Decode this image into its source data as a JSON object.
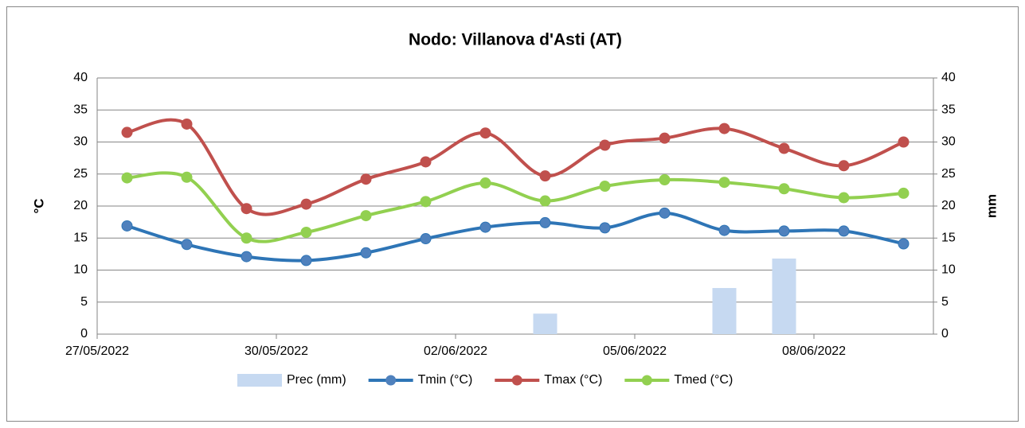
{
  "chart_data": {
    "type": "line",
    "title": "Nodo: Villanova d'Asti (AT)",
    "y_label": "°C",
    "y2_label": "mm",
    "categories": [
      "27/05/2022",
      null,
      null,
      "30/05/2022",
      null,
      null,
      "02/06/2022",
      null,
      null,
      "05/06/2022",
      null,
      null,
      "08/06/2022",
      null
    ],
    "series": [
      {
        "name": "Prec (mm)",
        "type": "bar",
        "axis": "y2",
        "color": "#c6d9f1",
        "values": [
          0,
          0,
          0,
          0,
          0,
          0,
          0,
          3.2,
          0,
          0,
          7.2,
          11.8,
          0,
          0
        ]
      },
      {
        "name": "Tmin (°C)",
        "type": "line",
        "color": "#2e75b6",
        "marker_color": "#4f81bd",
        "values": [
          16.9,
          14,
          12.1,
          11.5,
          12.7,
          14.9,
          16.7,
          17.4,
          16.6,
          18.9,
          16.2,
          16.1,
          16.1,
          14.1
        ]
      },
      {
        "name": "Tmax (°C)",
        "type": "line",
        "color": "#c0504d",
        "marker_color": "#c0504d",
        "values": [
          31.5,
          32.8,
          19.6,
          20.3,
          24.2,
          26.9,
          31.4,
          24.7,
          29.5,
          30.6,
          32.1,
          29,
          26.3,
          30
        ]
      },
      {
        "name": "Tmed (°C)",
        "type": "line",
        "color": "#92d050",
        "marker_color": "#92d050",
        "values": [
          24.4,
          24.5,
          15,
          15.9,
          18.5,
          20.7,
          23.6,
          20.8,
          23.1,
          24.1,
          23.7,
          22.7,
          21.3,
          22
        ]
      }
    ],
    "ylim": [
      0,
      40
    ],
    "yticks": [
      0,
      5,
      10,
      15,
      20,
      25,
      30,
      35,
      40
    ],
    "y2lim": [
      0,
      40
    ],
    "y2ticks": [
      0,
      5,
      10,
      15,
      20,
      25,
      30,
      35,
      40
    ],
    "grid": true,
    "smooth": true,
    "legend": "bottom"
  }
}
